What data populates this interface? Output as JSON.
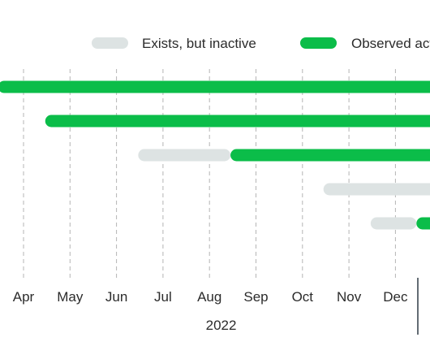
{
  "chart_data": {
    "type": "timeline",
    "title": "",
    "legend": [
      {
        "label": "Exists, but inactive",
        "color": "#dde3e3"
      },
      {
        "label": "Observed active",
        "color": "#0bbd49"
      }
    ],
    "x_axis": {
      "ticks": [
        "Apr",
        "May",
        "Jun",
        "Jul",
        "Aug",
        "Sep",
        "Oct",
        "Nov",
        "Dec"
      ],
      "year_label": "2022",
      "grid": "dashed vertical"
    },
    "series": [
      {
        "segments": [
          {
            "state": "Observed active",
            "start": "2022-03-15",
            "end": "2023-01-31"
          }
        ]
      },
      {
        "segments": [
          {
            "state": "Observed active",
            "start": "2022-04-15",
            "end": "2023-01-31"
          }
        ]
      },
      {
        "segments": [
          {
            "state": "Exists, but inactive",
            "start": "2022-06-15",
            "end": "2022-08-15"
          },
          {
            "state": "Observed active",
            "start": "2022-08-15",
            "end": "2023-01-31"
          }
        ]
      },
      {
        "segments": [
          {
            "state": "Exists, but inactive",
            "start": "2022-10-15",
            "end": "2023-01-31"
          }
        ]
      },
      {
        "segments": [
          {
            "state": "Exists, but inactive",
            "start": "2022-11-15",
            "end": "2022-12-15"
          },
          {
            "state": "Observed active",
            "start": "2022-12-15",
            "end": "2023-01-31"
          }
        ]
      }
    ]
  }
}
